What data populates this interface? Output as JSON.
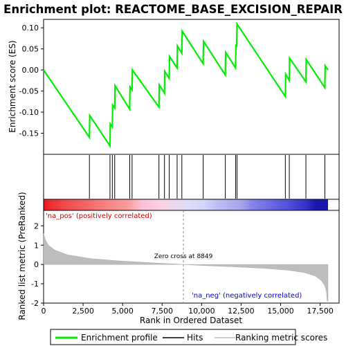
{
  "chart_data": {
    "type": "line",
    "title": "Enrichment plot: REACTOME_BASE_EXCISION_REPAIR",
    "es_panel": {
      "ylabel": "Enrichment score (ES)",
      "ylim": [
        -0.2,
        0.12
      ],
      "yticks": [
        0.1,
        0.05,
        0.0,
        -0.05,
        -0.1,
        -0.15
      ],
      "ytick_labels": [
        "0.10",
        "0.05",
        "0.00",
        "-0.05",
        "-0.10",
        "-0.15"
      ],
      "series_name": "Enrichment profile",
      "color": "#00ee00",
      "points": [
        [
          0,
          0.0
        ],
        [
          2900,
          -0.16
        ],
        [
          2920,
          -0.108
        ],
        [
          4200,
          -0.18
        ],
        [
          4220,
          -0.128
        ],
        [
          4350,
          -0.135
        ],
        [
          4370,
          -0.083
        ],
        [
          4500,
          -0.09
        ],
        [
          4520,
          -0.037
        ],
        [
          5450,
          -0.093
        ],
        [
          5470,
          -0.04
        ],
        [
          5600,
          -0.047
        ],
        [
          5620,
          0.0
        ],
        [
          7300,
          -0.088
        ],
        [
          7320,
          -0.035
        ],
        [
          7650,
          -0.055
        ],
        [
          7670,
          -0.003
        ],
        [
          7950,
          -0.02
        ],
        [
          7970,
          0.032
        ],
        [
          8450,
          0.005
        ],
        [
          8470,
          0.057
        ],
        [
          8750,
          0.04
        ],
        [
          8770,
          0.092
        ],
        [
          10100,
          0.015
        ],
        [
          10120,
          0.068
        ],
        [
          11500,
          -0.012
        ],
        [
          11520,
          0.042
        ],
        [
          12150,
          0.005
        ],
        [
          12170,
          0.058
        ],
        [
          12220,
          0.057
        ],
        [
          12240,
          0.109
        ],
        [
          15300,
          -0.063
        ],
        [
          15320,
          -0.01
        ],
        [
          15550,
          -0.025
        ],
        [
          15570,
          0.028
        ],
        [
          16600,
          -0.028
        ],
        [
          16620,
          0.025
        ],
        [
          17800,
          -0.042
        ],
        [
          17820,
          0.01
        ],
        [
          18000,
          0.0
        ]
      ]
    },
    "hits": {
      "legend_label": "Hits",
      "positions": [
        2900,
        4200,
        4350,
        4500,
        5450,
        5600,
        7300,
        7650,
        7950,
        8450,
        8750,
        10100,
        11500,
        12150,
        12240,
        15300,
        15550,
        16600,
        17800
      ]
    },
    "heatmap_band": {
      "stops": [
        [
          0,
          "#e8101a"
        ],
        [
          400,
          "#ee2c30"
        ],
        [
          1400,
          "#f04a4a"
        ],
        [
          2900,
          "#f46a6a"
        ],
        [
          4200,
          "#f88686"
        ],
        [
          5400,
          "#fa9e9e"
        ],
        [
          6200,
          "#fcc0d6"
        ],
        [
          7500,
          "#fcd0e4"
        ],
        [
          8800,
          "#e2dcf6"
        ],
        [
          10200,
          "#d2d4fa"
        ],
        [
          11100,
          "#bcbcf4"
        ],
        [
          12500,
          "#a6a6ec"
        ],
        [
          13200,
          "#8484e6"
        ],
        [
          14500,
          "#6666e2"
        ],
        [
          15500,
          "#5050da"
        ],
        [
          16500,
          "#3636cc"
        ],
        [
          17200,
          "#1818b0"
        ],
        [
          18000,
          "#1818b0"
        ]
      ]
    },
    "metric_panel": {
      "ylabel": "Ranked list metric (PreRanked)",
      "ylim": [
        -2.0,
        2.8
      ],
      "yticks": [
        2,
        1,
        0,
        -1,
        -2
      ],
      "ytick_labels": [
        "2",
        "1",
        "0",
        "-1",
        "-2"
      ],
      "series_name": "Ranking metric scores",
      "points": [
        [
          0,
          1.6
        ],
        [
          100,
          1.3
        ],
        [
          300,
          1.0
        ],
        [
          700,
          0.75
        ],
        [
          1500,
          0.5
        ],
        [
          3000,
          0.3
        ],
        [
          5000,
          0.17
        ],
        [
          7000,
          0.08
        ],
        [
          8849,
          0.0
        ],
        [
          10000,
          -0.05
        ],
        [
          12000,
          -0.12
        ],
        [
          14000,
          -0.2
        ],
        [
          15500,
          -0.3
        ],
        [
          16500,
          -0.42
        ],
        [
          17200,
          -0.6
        ],
        [
          17600,
          -0.85
        ],
        [
          17800,
          -1.1
        ],
        [
          17900,
          -1.4
        ],
        [
          17950,
          -1.9
        ],
        [
          18000,
          -1.9
        ]
      ],
      "zero_cross_label": "Zero cross at 8849",
      "zero_cross_rank": 8849,
      "pos_label": "'na_pos' (positively correlated)",
      "neg_label": "'na_neg' (negatively correlated)"
    },
    "xaxis": {
      "label": "Rank in Ordered Dataset",
      "xlim": [
        0,
        18700
      ],
      "ticks": [
        0,
        2500,
        5000,
        7500,
        10000,
        12500,
        15000,
        17500
      ],
      "tick_labels": [
        "0",
        "2,500",
        "5,000",
        "7,500",
        "10,000",
        "12,500",
        "15,000",
        "17,500"
      ],
      "max_rank": 18000
    },
    "legend": {
      "items": [
        {
          "label": "Enrichment profile",
          "color": "#00ee00"
        },
        {
          "label": "Hits",
          "color": "#000000"
        },
        {
          "label": "Ranking metric scores",
          "color": "#c0c0c0"
        }
      ]
    }
  }
}
